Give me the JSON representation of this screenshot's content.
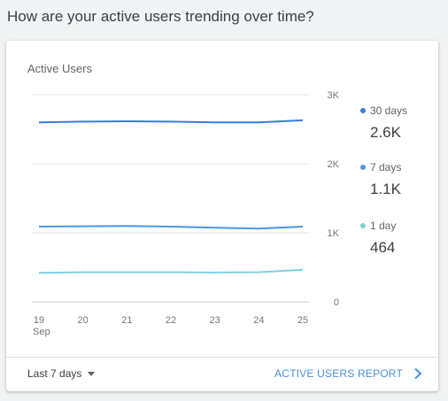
{
  "question": "How are your active users trending over time?",
  "card": {
    "title": "Active Users",
    "footer": {
      "range_label": "Last 7 days",
      "report_label": "ACTIVE USERS REPORT"
    }
  },
  "legend": [
    {
      "label": "30 days",
      "value": "2.6K",
      "color": "#3b78e7"
    },
    {
      "label": "7 days",
      "value": "1.1K",
      "color": "#4a98e2"
    },
    {
      "label": "1 day",
      "value": "464",
      "color": "#7fd0e0"
    }
  ],
  "chart_data": {
    "type": "line",
    "title": "Active Users",
    "x": [
      "19",
      "20",
      "21",
      "22",
      "23",
      "24",
      "25"
    ],
    "x_sublabel": "Sep",
    "ylim": [
      0,
      3000
    ],
    "yticks": [
      0,
      1000,
      2000,
      3000
    ],
    "ytick_labels": [
      "0",
      "1K",
      "2K",
      "3K"
    ],
    "y_axis_position": "right",
    "grid": true,
    "legend_position": "right",
    "series": [
      {
        "name": "30 days",
        "color": "#3b78e7",
        "values": [
          2600,
          2610,
          2615,
          2610,
          2600,
          2600,
          2630
        ]
      },
      {
        "name": "7 days",
        "color": "#4a98e2",
        "values": [
          1090,
          1095,
          1100,
          1090,
          1075,
          1060,
          1090
        ]
      },
      {
        "name": "1 day",
        "color": "#7fd0e0",
        "values": [
          420,
          430,
          430,
          430,
          425,
          430,
          464
        ]
      }
    ]
  }
}
